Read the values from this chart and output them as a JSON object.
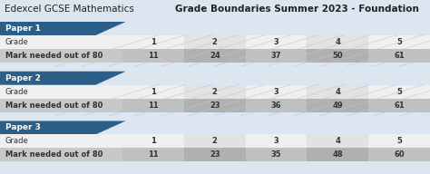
{
  "title_normal": "Edexcel GCSE Mathematics ",
  "title_bold": "Grade Boundaries Summer 2023 - Foundation",
  "bg_color": "#dce6f0",
  "paper_header_color": "#2b5f8a",
  "papers": [
    {
      "name": "Paper 1",
      "grades": [
        1,
        2,
        3,
        4,
        5
      ],
      "marks": [
        11,
        24,
        37,
        50,
        61
      ]
    },
    {
      "name": "Paper 2",
      "grades": [
        1,
        2,
        3,
        4,
        5
      ],
      "marks": [
        11,
        23,
        36,
        49,
        61
      ]
    },
    {
      "name": "Paper 3",
      "grades": [
        1,
        2,
        3,
        4,
        5
      ],
      "marks": [
        11,
        23,
        35,
        48,
        60
      ]
    }
  ],
  "row_labels": [
    "Grade",
    "Mark needed out of 80"
  ],
  "grade_row_color": "#efefef",
  "mark_row_color": "#c0c0c0",
  "grade_cell_odd": "#efefef",
  "grade_cell_even": "#e2e2e2",
  "mark_cell_odd": "#c0c0c0",
  "mark_cell_even": "#b0b0b0",
  "label_col_bg": "#f5f5f5",
  "mark_label_bg": "#c8c8c8",
  "figsize": [
    4.74,
    1.92
  ],
  "dpi": 100,
  "title_fontsize": 7.5,
  "row_fontsize": 6.0,
  "header_fontsize": 6.5
}
